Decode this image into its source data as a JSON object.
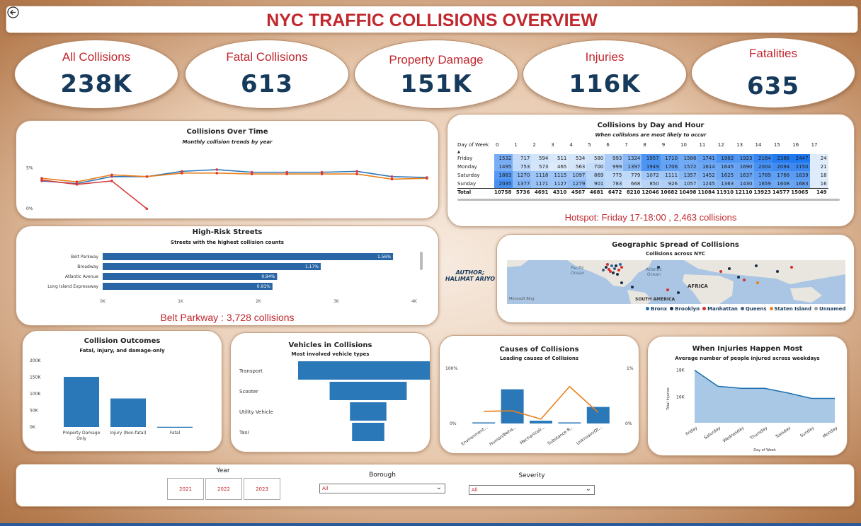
{
  "header": {
    "title": "NYC TRAFFIC COLLISIONS OVERVIEW",
    "back_icon": "back-arrow-icon"
  },
  "kpis": [
    {
      "label": "All Collisions",
      "value": "238K"
    },
    {
      "label": "Fatal Collisions",
      "value": "613"
    },
    {
      "label": "Property Damage",
      "value": "151K"
    },
    {
      "label": "Injuries",
      "value": "116K"
    },
    {
      "label": "Fatalities",
      "value": "635"
    }
  ],
  "over_time": {
    "title": "Collisions Over Time",
    "subtitle": "Monthly collision trends by year",
    "y_ticks": [
      "5%",
      "0%"
    ],
    "series": [
      {
        "color": "#2e75b6",
        "values": [
          3.5,
          3.2,
          4.0,
          4.0,
          4.6,
          4.8,
          4.5,
          4.5,
          4.5,
          4.6,
          4.0,
          3.9
        ]
      },
      {
        "color": "#e8801a",
        "values": [
          3.8,
          3.4,
          4.2,
          4.0,
          4.4,
          4.4,
          4.3,
          4.3,
          4.3,
          4.3,
          3.7,
          3.8
        ]
      },
      {
        "color": "#d63b3b",
        "values": [
          3.6,
          3.1,
          3.5,
          0.3
        ]
      }
    ],
    "y_max": 6.5
  },
  "heatmap": {
    "title": "Collisions by Day and Hour",
    "subtitle": "When collisions are most likely to occur",
    "col_header": "Day of Week",
    "hours": [
      "0",
      "1",
      "2",
      "3",
      "4",
      "5",
      "6",
      "7",
      "8",
      "9",
      "10",
      "11",
      "12",
      "13",
      "14",
      "15",
      "16",
      "17"
    ],
    "rows": [
      {
        "day": "Friday",
        "values": [
          "1532",
          "717",
          "594",
          "511",
          "534",
          "580",
          "993",
          "1324",
          "1957",
          "1710",
          "1588",
          "1741",
          "1982",
          "1923",
          "2164",
          "2386",
          "2447",
          "24"
        ]
      },
      {
        "day": "Monday",
        "values": [
          "1495",
          "753",
          "573",
          "465",
          "563",
          "700",
          "999",
          "1397",
          "1949",
          "1706",
          "1572",
          "1614",
          "1645",
          "1690",
          "2004",
          "2094",
          "2150",
          "21"
        ]
      },
      {
        "day": "Saturday",
        "values": [
          "1883",
          "1270",
          "1118",
          "1115",
          "1097",
          "869",
          "775",
          "779",
          "1072",
          "1111",
          "1357",
          "1452",
          "1625",
          "1637",
          "1789",
          "1768",
          "1839",
          "18"
        ]
      },
      {
        "day": "Sunday",
        "values": [
          "2035",
          "1377",
          "1171",
          "1127",
          "1279",
          "901",
          "783",
          "668",
          "850",
          "926",
          "1057",
          "1245",
          "1363",
          "1430",
          "1659",
          "1608",
          "1683",
          "16"
        ]
      }
    ],
    "total_label": "Total",
    "totals": [
      "10758",
      "5736",
      "4691",
      "4310",
      "4567",
      "4681",
      "6472",
      "8210",
      "12046",
      "10682",
      "10498",
      "11084",
      "11910",
      "12110",
      "13923",
      "14577",
      "15065",
      "149"
    ],
    "hotspot": "Hotspot: Friday 17-18:00 , 2,463 collisions"
  },
  "streets": {
    "title": "High-Risk Streets",
    "subtitle": "Streets with the highest collision counts",
    "items": [
      {
        "name": "Belt Parkway",
        "value": 3728,
        "label": "1.56%"
      },
      {
        "name": "Broadway",
        "value": 2800,
        "label": "1.17%"
      },
      {
        "name": "Atlantic Avenue",
        "value": 2240,
        "label": "0.94%"
      },
      {
        "name": "Long Island Expressway",
        "value": 2180,
        "label": "0.91%"
      }
    ],
    "x_ticks": [
      "0K",
      "1K",
      "2K",
      "3K",
      "4K"
    ],
    "x_max": 4000,
    "highlight": "Belt Parkway : 3,728 collisions"
  },
  "author": "AUTHOR;\nHALIMAT ARIYO",
  "map": {
    "title": "Geographic Spread of Collisions",
    "subtitle": "Collisions across NYC",
    "labels": {
      "pacific": "Pacific\nOcean",
      "atlantic": "Atlantic\nOcean",
      "africa": "AFRICA",
      "south_america": "SOUTH AMERICA",
      "ms": "Microsoft Bing"
    },
    "legend": [
      {
        "name": "Bronx",
        "color": "#1f6fb0"
      },
      {
        "name": "Brooklyn",
        "color": "#1b2b4a"
      },
      {
        "name": "Manhattan",
        "color": "#d6302c"
      },
      {
        "name": "Queens",
        "color": "#3b5f82"
      },
      {
        "name": "Staten Island",
        "color": "#e8801a"
      },
      {
        "name": "Unnamed",
        "color": "#9a9a9a"
      }
    ]
  },
  "outcomes": {
    "title": "Collision Outcomes",
    "subtitle": "Fatal, injury, and damage-only",
    "y_ticks": [
      "200K",
      "150K",
      "100K",
      "50K",
      "0K"
    ],
    "y_max": 200000,
    "bars": [
      {
        "name": "Property Damage Only",
        "value": 151000
      },
      {
        "name": "Injury (Non-fatal)",
        "value": 86000
      },
      {
        "name": "Fatal",
        "value": 613
      }
    ]
  },
  "vehicles": {
    "title": "Vehicles in Collisions",
    "subtitle": "Most involved vehicle types",
    "items": [
      {
        "name": "Transport",
        "value": 100
      },
      {
        "name": "Scooter",
        "value": 55
      },
      {
        "name": "Utility Vehicle",
        "value": 26
      },
      {
        "name": "Taxi",
        "value": 23
      }
    ]
  },
  "causes": {
    "title": "Causes of Collisions",
    "subtitle": "Leading causes of Collisions",
    "y_left": [
      "100%",
      "0%"
    ],
    "y_right": [
      "1%",
      "0%"
    ],
    "categories": [
      "Environment...",
      "Human/Beha...",
      "Mechanical/...",
      "Substance-R...",
      "Unknown/Ot..."
    ],
    "bars": [
      2,
      62,
      5,
      2,
      30
    ],
    "line": [
      22,
      23,
      8,
      67,
      20
    ]
  },
  "injuries": {
    "title": "When Injuries Happen Most",
    "subtitle": "Average number of people injured across weekdays",
    "ylabel": "Total Injuries",
    "xlabel": "Day of Week",
    "y_ticks": [
      "18K",
      "16K"
    ],
    "days": [
      "Friday",
      "Saturday",
      "Wednesday",
      "Thursday",
      "Tuesday",
      "Sunday",
      "Monday"
    ],
    "values": [
      18000,
      16800,
      16650,
      16650,
      16300,
      15900,
      15900
    ],
    "y_min": 14400,
    "y_max": 18400
  },
  "filters": {
    "year_label": "Year",
    "years": [
      "2021",
      "2022",
      "2023"
    ],
    "borough_label": "Borough",
    "borough_value": "All",
    "severity_label": "Severity",
    "severity_value": "All"
  }
}
